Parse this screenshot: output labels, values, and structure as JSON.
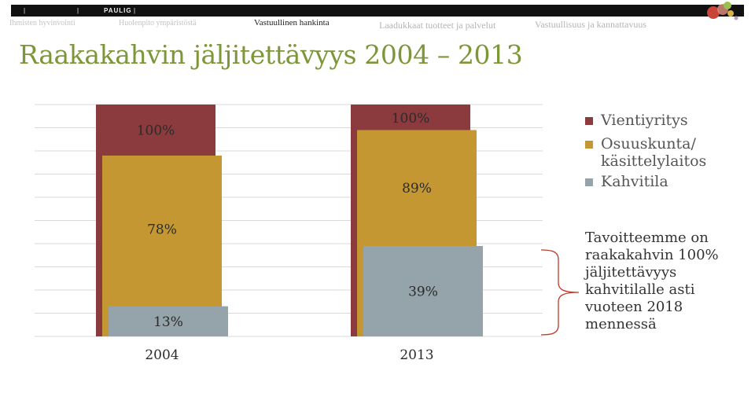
{
  "header": {
    "brand": "PAULIG",
    "nav": [
      {
        "label": "Ihmisten hyvinvointi",
        "active": false
      },
      {
        "label": "Huolenpito ympäristöstä",
        "active": false
      },
      {
        "label": "Vastuullinen hankinta",
        "active": true
      },
      {
        "label": "Laadukkaat tuotteet ja palvelut",
        "active": false
      },
      {
        "label": "Vastuullisuus ja kannattavuus",
        "active": false
      }
    ]
  },
  "page": {
    "title": "Raakakahvin jäljitettävyys 2004 – 2013"
  },
  "note": {
    "text": "Tavoitteemme on raakakahvin 100% jäljitettävyys kahvitilalle asti vuoteen 2018 mennessä"
  },
  "colors": {
    "vienti": "#8b3a3e",
    "osuus": "#c49733",
    "kahvitila": "#95a3ab",
    "title": "#7d9638"
  },
  "chart_data": {
    "type": "bar",
    "categories": [
      "2004",
      "2013"
    ],
    "series": [
      {
        "name": "Vientiyritys",
        "values": [
          100,
          100
        ],
        "labels": [
          "100%",
          "100%"
        ]
      },
      {
        "name": "Osuuskunta/ käsittelylaitos",
        "values": [
          78,
          89
        ],
        "labels": [
          "78%",
          "89%"
        ]
      },
      {
        "name": "Kahvitila",
        "values": [
          13,
          39
        ],
        "labels": [
          "13%",
          "39%"
        ]
      }
    ],
    "ylim": [
      0,
      100
    ],
    "grid": true,
    "legend": "top-right"
  }
}
